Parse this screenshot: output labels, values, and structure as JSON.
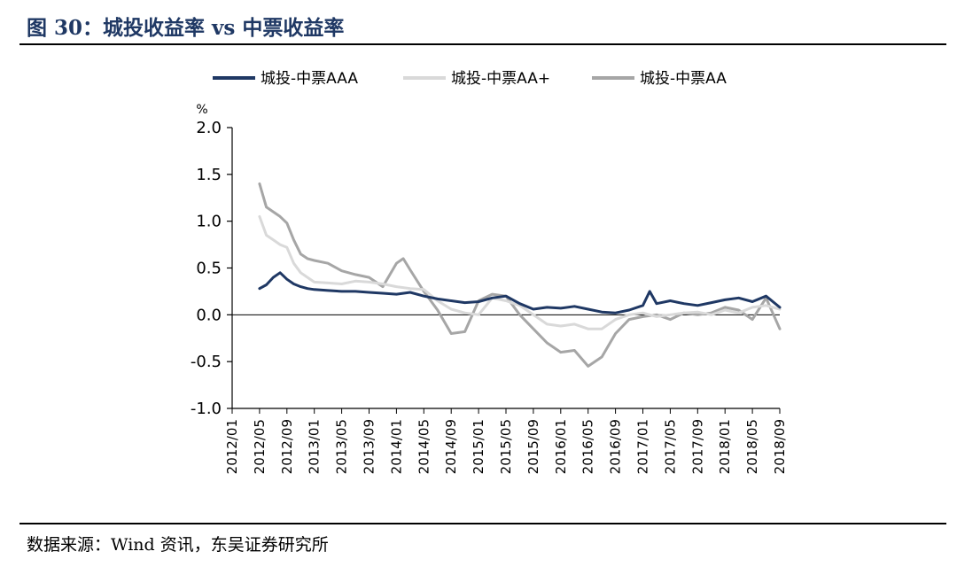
{
  "header": {
    "title": "图 30：城投收益率 vs 中票收益率"
  },
  "footer": {
    "source": "数据来源：Wind 资讯，东吴证券研究所"
  },
  "chart_data": {
    "type": "line",
    "unit_label": "%",
    "ylim": [
      -1.0,
      2.0
    ],
    "y_ticks": [
      "2.0",
      "1.5",
      "1.0",
      "0.5",
      "0.0",
      "-0.5",
      "-1.0"
    ],
    "x_ticks": [
      "2012/01",
      "2012/05",
      "2012/09",
      "2013/01",
      "2013/05",
      "2013/09",
      "2014/01",
      "2014/05",
      "2014/09",
      "2015/01",
      "2015/05",
      "2015/09",
      "2016/01",
      "2016/05",
      "2016/09",
      "2017/01",
      "2017/05",
      "2017/09",
      "2018/01",
      "2018/05",
      "2018/09"
    ],
    "legend_position": "top",
    "grid": false,
    "series": [
      {
        "name": "城投-中票AAA",
        "color": "#1f3864",
        "values": [
          [
            "2012/05",
            0.28
          ],
          [
            "2012/06",
            0.32
          ],
          [
            "2012/07",
            0.4
          ],
          [
            "2012/08",
            0.45
          ],
          [
            "2012/09",
            0.38
          ],
          [
            "2012/10",
            0.33
          ],
          [
            "2012/11",
            0.3
          ],
          [
            "2012/12",
            0.28
          ],
          [
            "2013/01",
            0.27
          ],
          [
            "2013/03",
            0.26
          ],
          [
            "2013/05",
            0.25
          ],
          [
            "2013/07",
            0.25
          ],
          [
            "2013/09",
            0.24
          ],
          [
            "2013/11",
            0.23
          ],
          [
            "2014/01",
            0.22
          ],
          [
            "2014/03",
            0.24
          ],
          [
            "2014/05",
            0.2
          ],
          [
            "2014/07",
            0.17
          ],
          [
            "2014/09",
            0.15
          ],
          [
            "2014/11",
            0.13
          ],
          [
            "2015/01",
            0.14
          ],
          [
            "2015/03",
            0.18
          ],
          [
            "2015/05",
            0.2
          ],
          [
            "2015/07",
            0.12
          ],
          [
            "2015/09",
            0.06
          ],
          [
            "2015/11",
            0.08
          ],
          [
            "2016/01",
            0.07
          ],
          [
            "2016/03",
            0.09
          ],
          [
            "2016/05",
            0.06
          ],
          [
            "2016/07",
            0.03
          ],
          [
            "2016/09",
            0.02
          ],
          [
            "2016/11",
            0.05
          ],
          [
            "2017/01",
            0.1
          ],
          [
            "2017/02",
            0.25
          ],
          [
            "2017/03",
            0.12
          ],
          [
            "2017/05",
            0.15
          ],
          [
            "2017/07",
            0.12
          ],
          [
            "2017/09",
            0.1
          ],
          [
            "2017/11",
            0.13
          ],
          [
            "2018/01",
            0.16
          ],
          [
            "2018/03",
            0.18
          ],
          [
            "2018/05",
            0.14
          ],
          [
            "2018/07",
            0.2
          ],
          [
            "2018/09",
            0.08
          ]
        ]
      },
      {
        "name": "城投-中票AA+",
        "color": "#d9d9d9",
        "values": [
          [
            "2012/05",
            1.05
          ],
          [
            "2012/06",
            0.85
          ],
          [
            "2012/07",
            0.8
          ],
          [
            "2012/08",
            0.75
          ],
          [
            "2012/09",
            0.72
          ],
          [
            "2012/10",
            0.55
          ],
          [
            "2012/11",
            0.45
          ],
          [
            "2012/12",
            0.4
          ],
          [
            "2013/01",
            0.35
          ],
          [
            "2013/03",
            0.34
          ],
          [
            "2013/05",
            0.33
          ],
          [
            "2013/07",
            0.36
          ],
          [
            "2013/09",
            0.35
          ],
          [
            "2013/11",
            0.33
          ],
          [
            "2014/01",
            0.3
          ],
          [
            "2014/03",
            0.28
          ],
          [
            "2014/05",
            0.27
          ],
          [
            "2014/07",
            0.15
          ],
          [
            "2014/09",
            0.06
          ],
          [
            "2014/11",
            0.02
          ],
          [
            "2015/01",
            0.0
          ],
          [
            "2015/03",
            0.18
          ],
          [
            "2015/05",
            0.15
          ],
          [
            "2015/07",
            0.1
          ],
          [
            "2015/09",
            0.0
          ],
          [
            "2015/11",
            -0.1
          ],
          [
            "2016/01",
            -0.12
          ],
          [
            "2016/03",
            -0.1
          ],
          [
            "2016/05",
            -0.15
          ],
          [
            "2016/07",
            -0.15
          ],
          [
            "2016/09",
            -0.05
          ],
          [
            "2016/11",
            0.0
          ],
          [
            "2017/01",
            0.02
          ],
          [
            "2017/03",
            -0.02
          ],
          [
            "2017/05",
            0.0
          ],
          [
            "2017/07",
            0.02
          ],
          [
            "2017/09",
            0.03
          ],
          [
            "2017/11",
            0.0
          ],
          [
            "2018/01",
            0.05
          ],
          [
            "2018/03",
            0.02
          ],
          [
            "2018/05",
            0.08
          ],
          [
            "2018/07",
            0.1
          ],
          [
            "2018/09",
            0.06
          ]
        ]
      },
      {
        "name": "城投-中票AA",
        "color": "#a6a6a6",
        "values": [
          [
            "2012/05",
            1.4
          ],
          [
            "2012/06",
            1.15
          ],
          [
            "2012/07",
            1.1
          ],
          [
            "2012/08",
            1.05
          ],
          [
            "2012/09",
            0.98
          ],
          [
            "2012/10",
            0.8
          ],
          [
            "2012/11",
            0.65
          ],
          [
            "2012/12",
            0.6
          ],
          [
            "2013/01",
            0.58
          ],
          [
            "2013/03",
            0.55
          ],
          [
            "2013/05",
            0.47
          ],
          [
            "2013/07",
            0.43
          ],
          [
            "2013/09",
            0.4
          ],
          [
            "2013/11",
            0.3
          ],
          [
            "2014/01",
            0.55
          ],
          [
            "2014/02",
            0.6
          ],
          [
            "2014/03",
            0.48
          ],
          [
            "2014/05",
            0.25
          ],
          [
            "2014/07",
            0.05
          ],
          [
            "2014/09",
            -0.2
          ],
          [
            "2014/11",
            -0.18
          ],
          [
            "2015/01",
            0.15
          ],
          [
            "2015/03",
            0.22
          ],
          [
            "2015/05",
            0.2
          ],
          [
            "2015/07",
            0.0
          ],
          [
            "2015/09",
            -0.15
          ],
          [
            "2015/11",
            -0.3
          ],
          [
            "2016/01",
            -0.4
          ],
          [
            "2016/03",
            -0.38
          ],
          [
            "2016/05",
            -0.55
          ],
          [
            "2016/07",
            -0.45
          ],
          [
            "2016/09",
            -0.2
          ],
          [
            "2016/11",
            -0.05
          ],
          [
            "2017/01",
            -0.02
          ],
          [
            "2017/03",
            0.0
          ],
          [
            "2017/05",
            -0.05
          ],
          [
            "2017/07",
            0.02
          ],
          [
            "2017/09",
            0.0
          ],
          [
            "2017/11",
            0.02
          ],
          [
            "2018/01",
            0.08
          ],
          [
            "2018/03",
            0.05
          ],
          [
            "2018/05",
            -0.05
          ],
          [
            "2018/07",
            0.18
          ],
          [
            "2018/09",
            -0.15
          ]
        ]
      }
    ]
  }
}
